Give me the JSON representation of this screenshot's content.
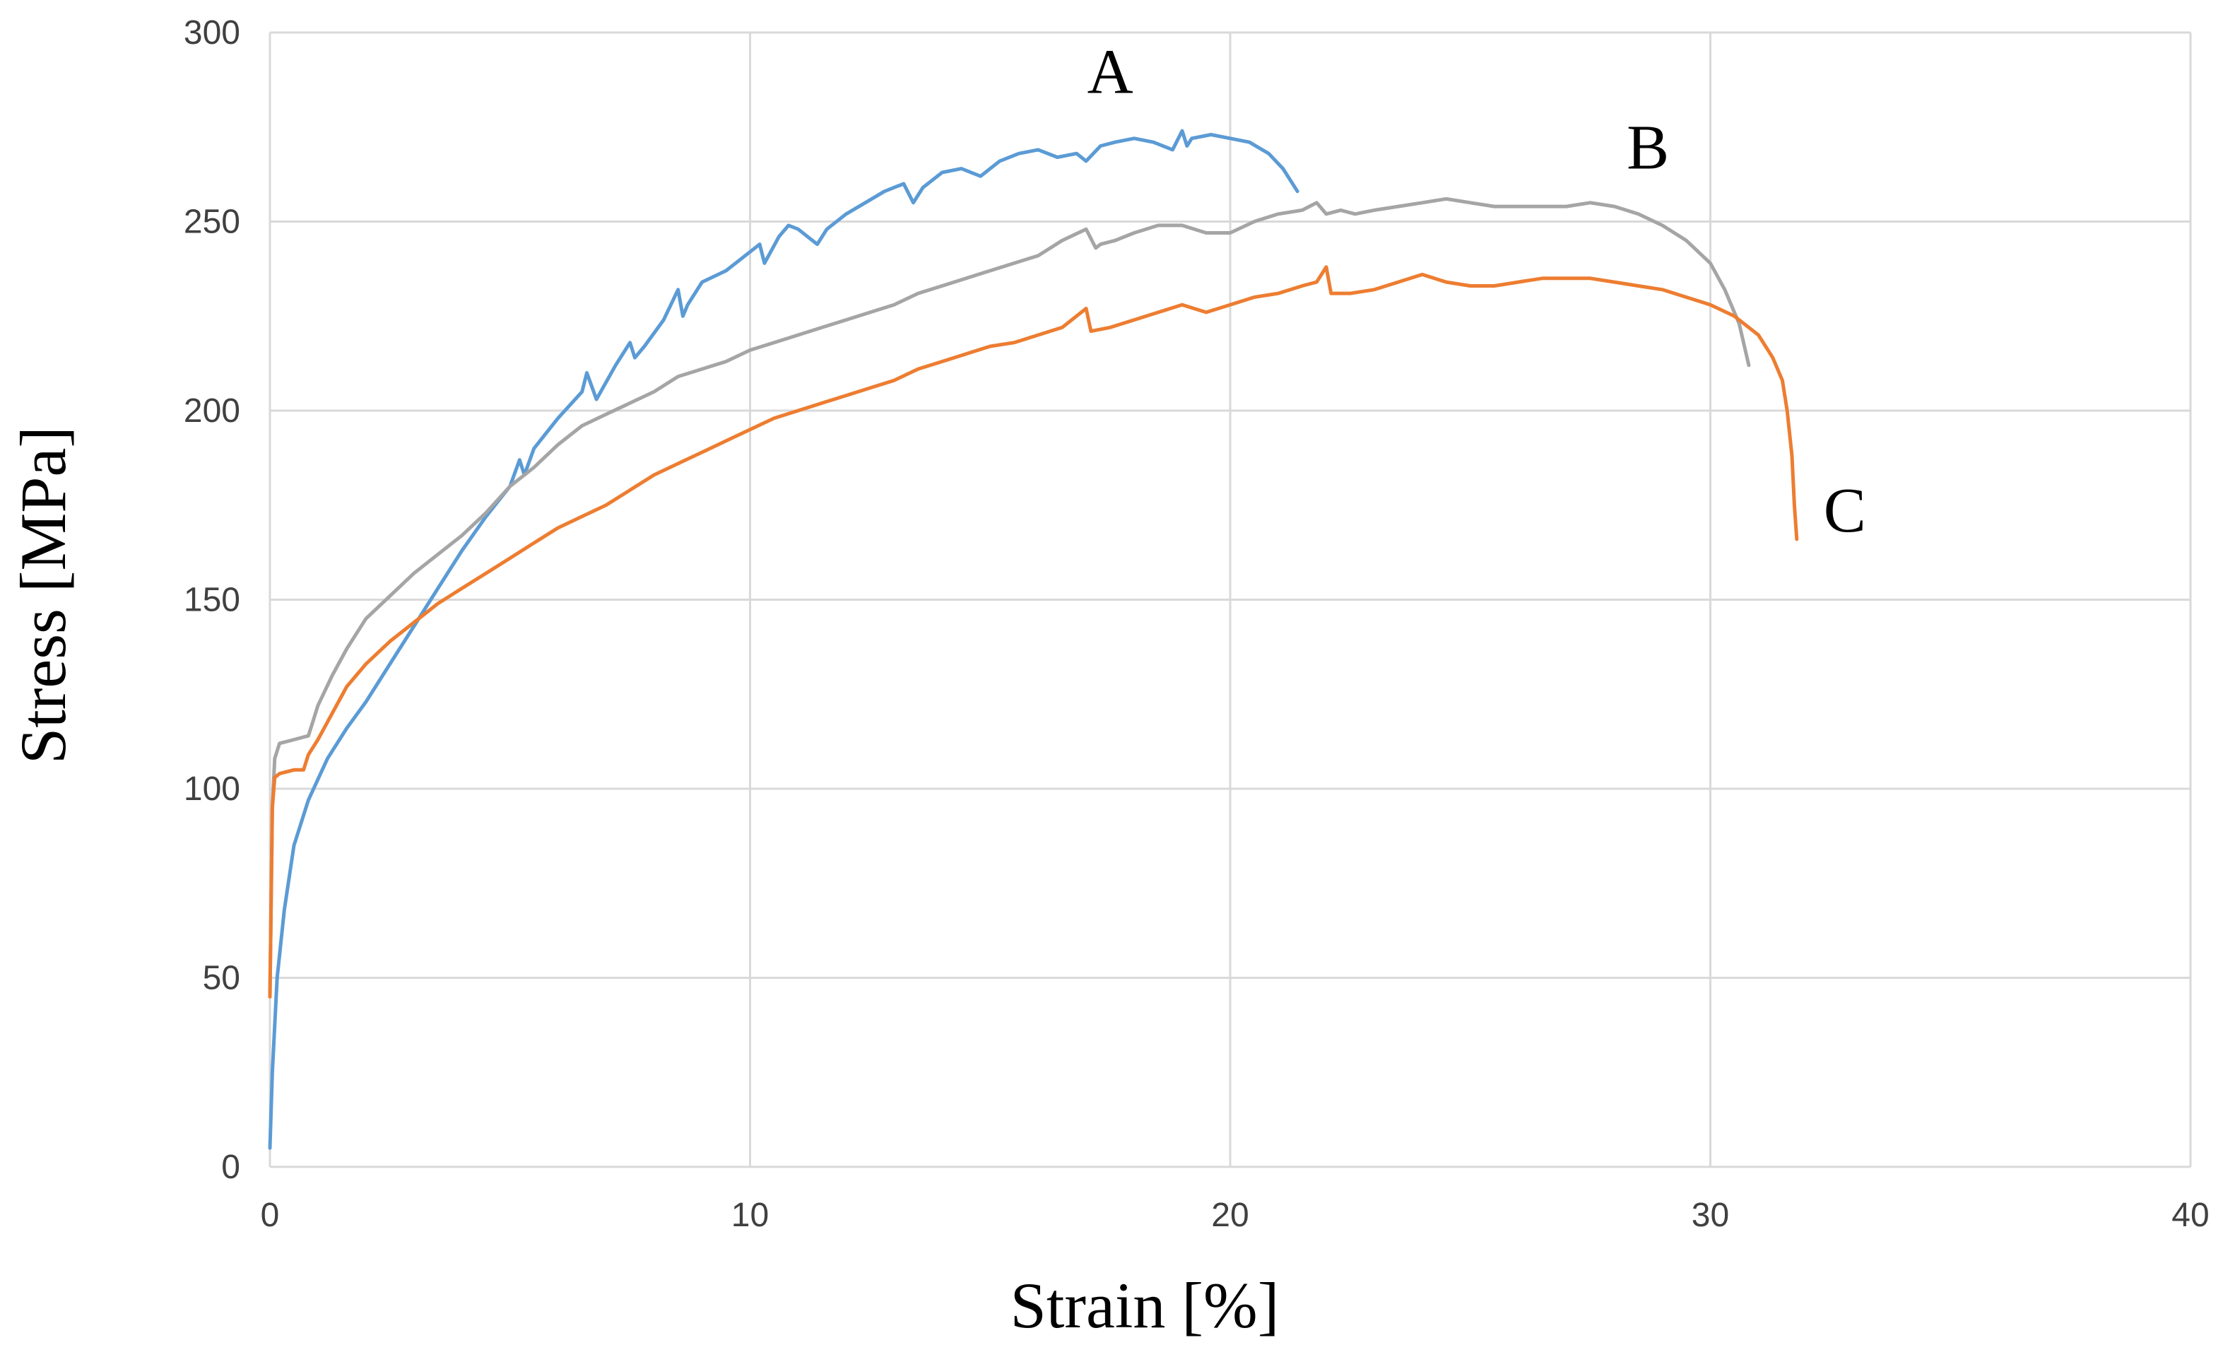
{
  "chart_data": {
    "type": "line",
    "title": "",
    "xlabel": "Strain [%]",
    "ylabel": "Stress [MPa]",
    "xlim": [
      0,
      40
    ],
    "ylim": [
      0,
      300
    ],
    "x_ticks": [
      0,
      10,
      20,
      30,
      40
    ],
    "y_ticks": [
      0,
      50,
      100,
      150,
      200,
      250,
      300
    ],
    "x_tick_labels": [
      "0",
      "10",
      "20",
      "30",
      "40"
    ],
    "y_tick_labels": [
      "0",
      "50",
      "100",
      "150",
      "200",
      "250",
      "300"
    ],
    "grid": true,
    "series": [
      {
        "name": "A",
        "color": "#5b9bd5",
        "label_at": [
          17.5,
          284
        ],
        "x": [
          0,
          0.05,
          0.15,
          0.3,
          0.5,
          0.8,
          1.2,
          1.6,
          2.0,
          2.5,
          3.0,
          3.5,
          4.0,
          4.5,
          5.0,
          5.2,
          5.3,
          5.5,
          6.0,
          6.5,
          6.6,
          6.8,
          7.2,
          7.5,
          7.6,
          7.8,
          8.2,
          8.5,
          8.6,
          8.7,
          9.0,
          9.5,
          10.0,
          10.2,
          10.3,
          10.6,
          10.8,
          11.0,
          11.2,
          11.4,
          11.6,
          12.0,
          12.4,
          12.8,
          13.2,
          13.4,
          13.6,
          14.0,
          14.4,
          14.8,
          15.2,
          15.6,
          16.0,
          16.4,
          16.8,
          17.0,
          17.3,
          17.6,
          18.0,
          18.4,
          18.8,
          19.0,
          19.1,
          19.2,
          19.6,
          20.0,
          20.4,
          20.8,
          21.1,
          21.4
        ],
        "y": [
          5,
          25,
          50,
          68,
          85,
          97,
          108,
          116,
          123,
          133,
          143,
          153,
          163,
          172,
          180,
          187,
          183,
          190,
          198,
          205,
          210,
          203,
          212,
          218,
          214,
          217,
          224,
          232,
          225,
          228,
          234,
          237,
          242,
          244,
          239,
          246,
          249,
          248,
          246,
          244,
          248,
          252,
          255,
          258,
          260,
          255,
          259,
          263,
          264,
          262,
          266,
          268,
          269,
          267,
          268,
          266,
          270,
          271,
          272,
          271,
          269,
          274,
          270,
          272,
          273,
          272,
          271,
          268,
          264,
          258
        ]
      },
      {
        "name": "B",
        "color": "#a5a5a5",
        "label_at": [
          28.7,
          264
        ],
        "x": [
          0,
          0.05,
          0.1,
          0.2,
          0.5,
          0.8,
          0.9,
          1.0,
          1.3,
          1.6,
          2.0,
          2.5,
          3.0,
          3.5,
          4.0,
          4.5,
          5.0,
          5.5,
          6.0,
          6.5,
          7.0,
          7.5,
          8.0,
          8.5,
          9.0,
          9.5,
          10.0,
          10.5,
          11.0,
          11.5,
          12.0,
          12.5,
          13.0,
          13.5,
          14.0,
          14.5,
          15.0,
          15.5,
          16.0,
          16.5,
          17.0,
          17.2,
          17.3,
          17.6,
          18.0,
          18.5,
          19.0,
          19.5,
          20.0,
          20.5,
          21.0,
          21.5,
          21.8,
          22.0,
          22.3,
          22.6,
          23.0,
          23.5,
          24.0,
          24.5,
          25.0,
          25.5,
          26.0,
          26.5,
          27.0,
          27.5,
          28.0,
          28.5,
          29.0,
          29.5,
          30.0,
          30.3,
          30.6,
          30.8
        ],
        "y": [
          45,
          95,
          108,
          112,
          113,
          114,
          118,
          122,
          130,
          137,
          145,
          151,
          157,
          162,
          167,
          173,
          180,
          185,
          191,
          196,
          199,
          202,
          205,
          209,
          211,
          213,
          216,
          218,
          220,
          222,
          224,
          226,
          228,
          231,
          233,
          235,
          237,
          239,
          241,
          245,
          248,
          243,
          244,
          245,
          247,
          249,
          249,
          247,
          247,
          250,
          252,
          253,
          255,
          252,
          253,
          252,
          253,
          254,
          255,
          256,
          255,
          254,
          254,
          254,
          254,
          255,
          254,
          252,
          249,
          245,
          239,
          232,
          223,
          212
        ]
      },
      {
        "name": "C",
        "color": "#ed7d31",
        "label_at": [
          32.8,
          168
        ],
        "x": [
          0,
          0.05,
          0.1,
          0.2,
          0.5,
          0.7,
          0.8,
          1.0,
          1.3,
          1.6,
          2.0,
          2.5,
          3.0,
          3.5,
          4.0,
          4.5,
          5.0,
          5.5,
          6.0,
          6.5,
          7.0,
          7.5,
          8.0,
          8.5,
          9.0,
          9.5,
          10.0,
          10.5,
          11.0,
          11.5,
          12.0,
          12.5,
          13.0,
          13.5,
          14.0,
          14.5,
          15.0,
          15.5,
          16.0,
          16.5,
          17.0,
          17.1,
          17.5,
          18.0,
          18.5,
          19.0,
          19.5,
          20.0,
          20.5,
          21.0,
          21.5,
          21.8,
          22.0,
          22.1,
          22.5,
          23.0,
          23.5,
          24.0,
          24.5,
          25.0,
          25.5,
          26.0,
          26.5,
          27.0,
          27.5,
          28.0,
          28.5,
          29.0,
          29.5,
          30.0,
          30.5,
          31.0,
          31.3,
          31.5,
          31.6,
          31.7,
          31.75,
          31.8
        ],
        "y": [
          45,
          95,
          103,
          104,
          105,
          105,
          109,
          113,
          120,
          127,
          133,
          139,
          144,
          149,
          153,
          157,
          161,
          165,
          169,
          172,
          175,
          179,
          183,
          186,
          189,
          192,
          195,
          198,
          200,
          202,
          204,
          206,
          208,
          211,
          213,
          215,
          217,
          218,
          220,
          222,
          227,
          221,
          222,
          224,
          226,
          228,
          226,
          228,
          230,
          231,
          233,
          234,
          238,
          231,
          231,
          232,
          234,
          236,
          234,
          233,
          233,
          234,
          235,
          235,
          235,
          234,
          233,
          232,
          230,
          228,
          225,
          220,
          214,
          208,
          200,
          188,
          175,
          166
        ]
      }
    ]
  }
}
